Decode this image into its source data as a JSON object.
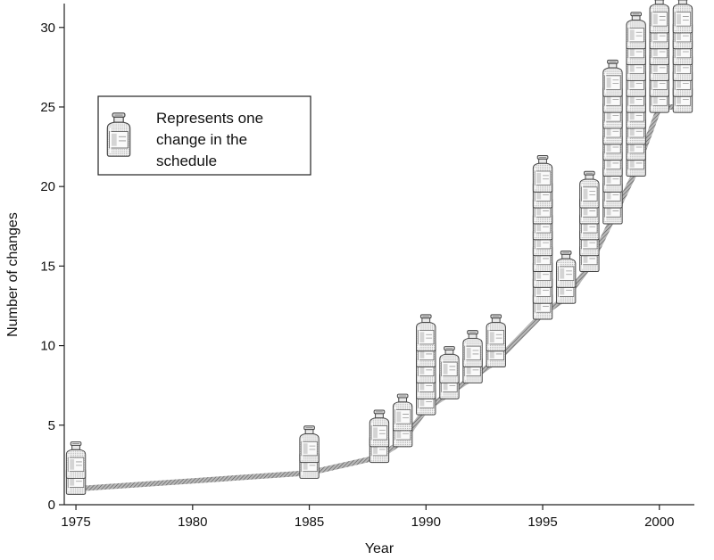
{
  "chart_data": {
    "type": "line",
    "xlabel": "Year",
    "ylabel": "Number of changes",
    "xlim": [
      1974.5,
      2001.5
    ],
    "ylim": [
      0,
      31.5
    ],
    "x_ticks": [
      1975,
      1980,
      1985,
      1990,
      1995,
      2000
    ],
    "y_ticks": [
      0,
      5,
      10,
      15,
      20,
      25,
      30
    ],
    "grid": false,
    "legend": {
      "placement": "upper-left",
      "icon": "vaccine-vial-icon",
      "lines": [
        "Represents one",
        "change in the",
        "schedule"
      ]
    },
    "series": [
      {
        "x": [
          1975,
          1985,
          1988,
          1989,
          1990,
          1991,
          1992,
          1993,
          1995,
          1996,
          1997,
          1998,
          1999,
          2000,
          2001
        ],
        "y": [
          1,
          2,
          3,
          4,
          6,
          7,
          8,
          9,
          12,
          13,
          15,
          18,
          21,
          25,
          25
        ]
      }
    ],
    "vials_per_year": [
      {
        "x": 1975,
        "y": [
          1,
          2
        ]
      },
      {
        "x": 1985,
        "y": [
          2,
          3
        ]
      },
      {
        "x": 1988,
        "y": [
          3,
          4
        ]
      },
      {
        "x": 1989,
        "y": [
          4,
          5
        ]
      },
      {
        "x": 1990,
        "y": [
          6,
          7,
          8,
          9,
          10
        ]
      },
      {
        "x": 1991,
        "y": [
          7,
          8
        ]
      },
      {
        "x": 1992,
        "y": [
          8,
          9
        ]
      },
      {
        "x": 1993,
        "y": [
          9,
          10
        ]
      },
      {
        "x": 1995,
        "y": [
          12,
          13,
          14,
          15,
          16,
          17,
          18,
          19,
          20
        ]
      },
      {
        "x": 1996,
        "y": [
          13,
          14
        ]
      },
      {
        "x": 1997,
        "y": [
          15,
          16,
          17,
          18,
          19
        ]
      },
      {
        "x": 1998,
        "y": [
          18,
          19,
          20,
          21,
          22,
          23,
          24,
          25,
          26
        ]
      },
      {
        "x": 1999,
        "y": [
          21,
          22,
          23,
          24,
          25,
          26,
          27,
          28,
          29
        ]
      },
      {
        "x": 2000,
        "y": [
          25,
          26,
          27,
          28,
          29,
          30
        ]
      },
      {
        "x": 2001,
        "y": [
          25,
          26,
          27,
          28,
          29,
          30
        ]
      }
    ],
    "colors": {
      "line": "#8a8a8a",
      "vial_fill": "#f2f2f2",
      "vial_stroke": "#4a4a4a",
      "axis": "#222222"
    }
  }
}
